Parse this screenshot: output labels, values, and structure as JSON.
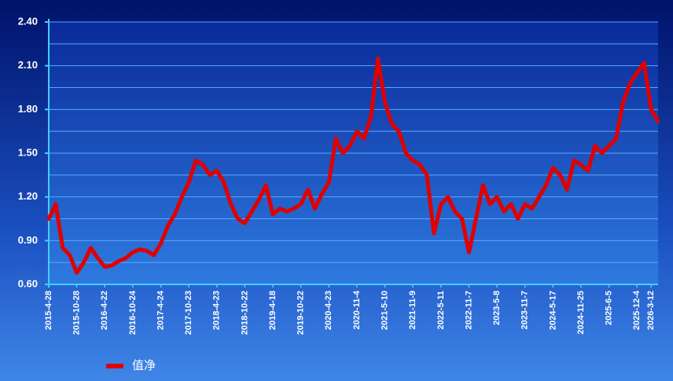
{
  "chart_data": {
    "type": "line",
    "categories": [
      "2015-4-28",
      null,
      null,
      null,
      "2015-10-28",
      null,
      null,
      null,
      "2016-4-22",
      null,
      null,
      null,
      "2016-10-24",
      null,
      null,
      null,
      "2017-4-24",
      null,
      null,
      null,
      "2017-10-23",
      null,
      null,
      null,
      "2018-4-23",
      null,
      null,
      null,
      "2018-10-22",
      null,
      null,
      null,
      "2019-4-18",
      null,
      null,
      null,
      "2019-10-22",
      null,
      null,
      null,
      "2020-4-23",
      null,
      null,
      null,
      "2020-11-4",
      null,
      null,
      null,
      "2021-5-10",
      null,
      null,
      null,
      "2021-11-9",
      null,
      null,
      null,
      "2022-5-11",
      null,
      null,
      null,
      "2022-11-7",
      null,
      null,
      null,
      "2023-5-8",
      null,
      null,
      null,
      "2023-11-7",
      null,
      null,
      null,
      "2024-5-17",
      null,
      null,
      null,
      "2024-11-25",
      null,
      null,
      null,
      "2025-6-5",
      null,
      null,
      null,
      "2025-12-4",
      null,
      "2026-3-12",
      null
    ],
    "series": [
      {
        "name": "值净",
        "color": "#e00000",
        "values": [
          1.05,
          1.15,
          0.85,
          0.8,
          0.68,
          0.75,
          0.85,
          0.78,
          0.72,
          0.73,
          0.76,
          0.78,
          0.82,
          0.84,
          0.83,
          0.8,
          0.88,
          1.0,
          1.08,
          1.2,
          1.3,
          1.45,
          1.42,
          1.35,
          1.38,
          1.3,
          1.15,
          1.05,
          1.02,
          1.1,
          1.18,
          1.28,
          1.08,
          1.12,
          1.1,
          1.12,
          1.15,
          1.25,
          1.12,
          1.22,
          1.3,
          1.6,
          1.5,
          1.55,
          1.65,
          1.6,
          1.75,
          2.15,
          1.85,
          1.7,
          1.65,
          1.5,
          1.45,
          1.42,
          1.35,
          0.95,
          1.15,
          1.2,
          1.1,
          1.05,
          0.82,
          1.05,
          1.28,
          1.15,
          1.2,
          1.1,
          1.15,
          1.05,
          1.15,
          1.12,
          1.2,
          1.28,
          1.4,
          1.35,
          1.25,
          1.45,
          1.42,
          1.38,
          1.55,
          1.5,
          1.55,
          1.6,
          1.85,
          1.98,
          2.05,
          2.12,
          1.8,
          1.72
        ]
      }
    ],
    "ylim": [
      0.6,
      2.4
    ],
    "yticks": [
      {
        "value": 0.6,
        "label": "0.60"
      },
      {
        "value": 0.9,
        "label": "0.90"
      },
      {
        "value": 1.2,
        "label": "1.20"
      },
      {
        "value": 1.5,
        "label": "1.50"
      },
      {
        "value": 1.8,
        "label": "1.80"
      },
      {
        "value": 2.1,
        "label": "2.10"
      },
      {
        "value": 2.4,
        "label": "2.40"
      }
    ],
    "minor_yticks": [
      0.75,
      1.05,
      1.35,
      1.65,
      1.95,
      2.25
    ],
    "grid": true
  }
}
